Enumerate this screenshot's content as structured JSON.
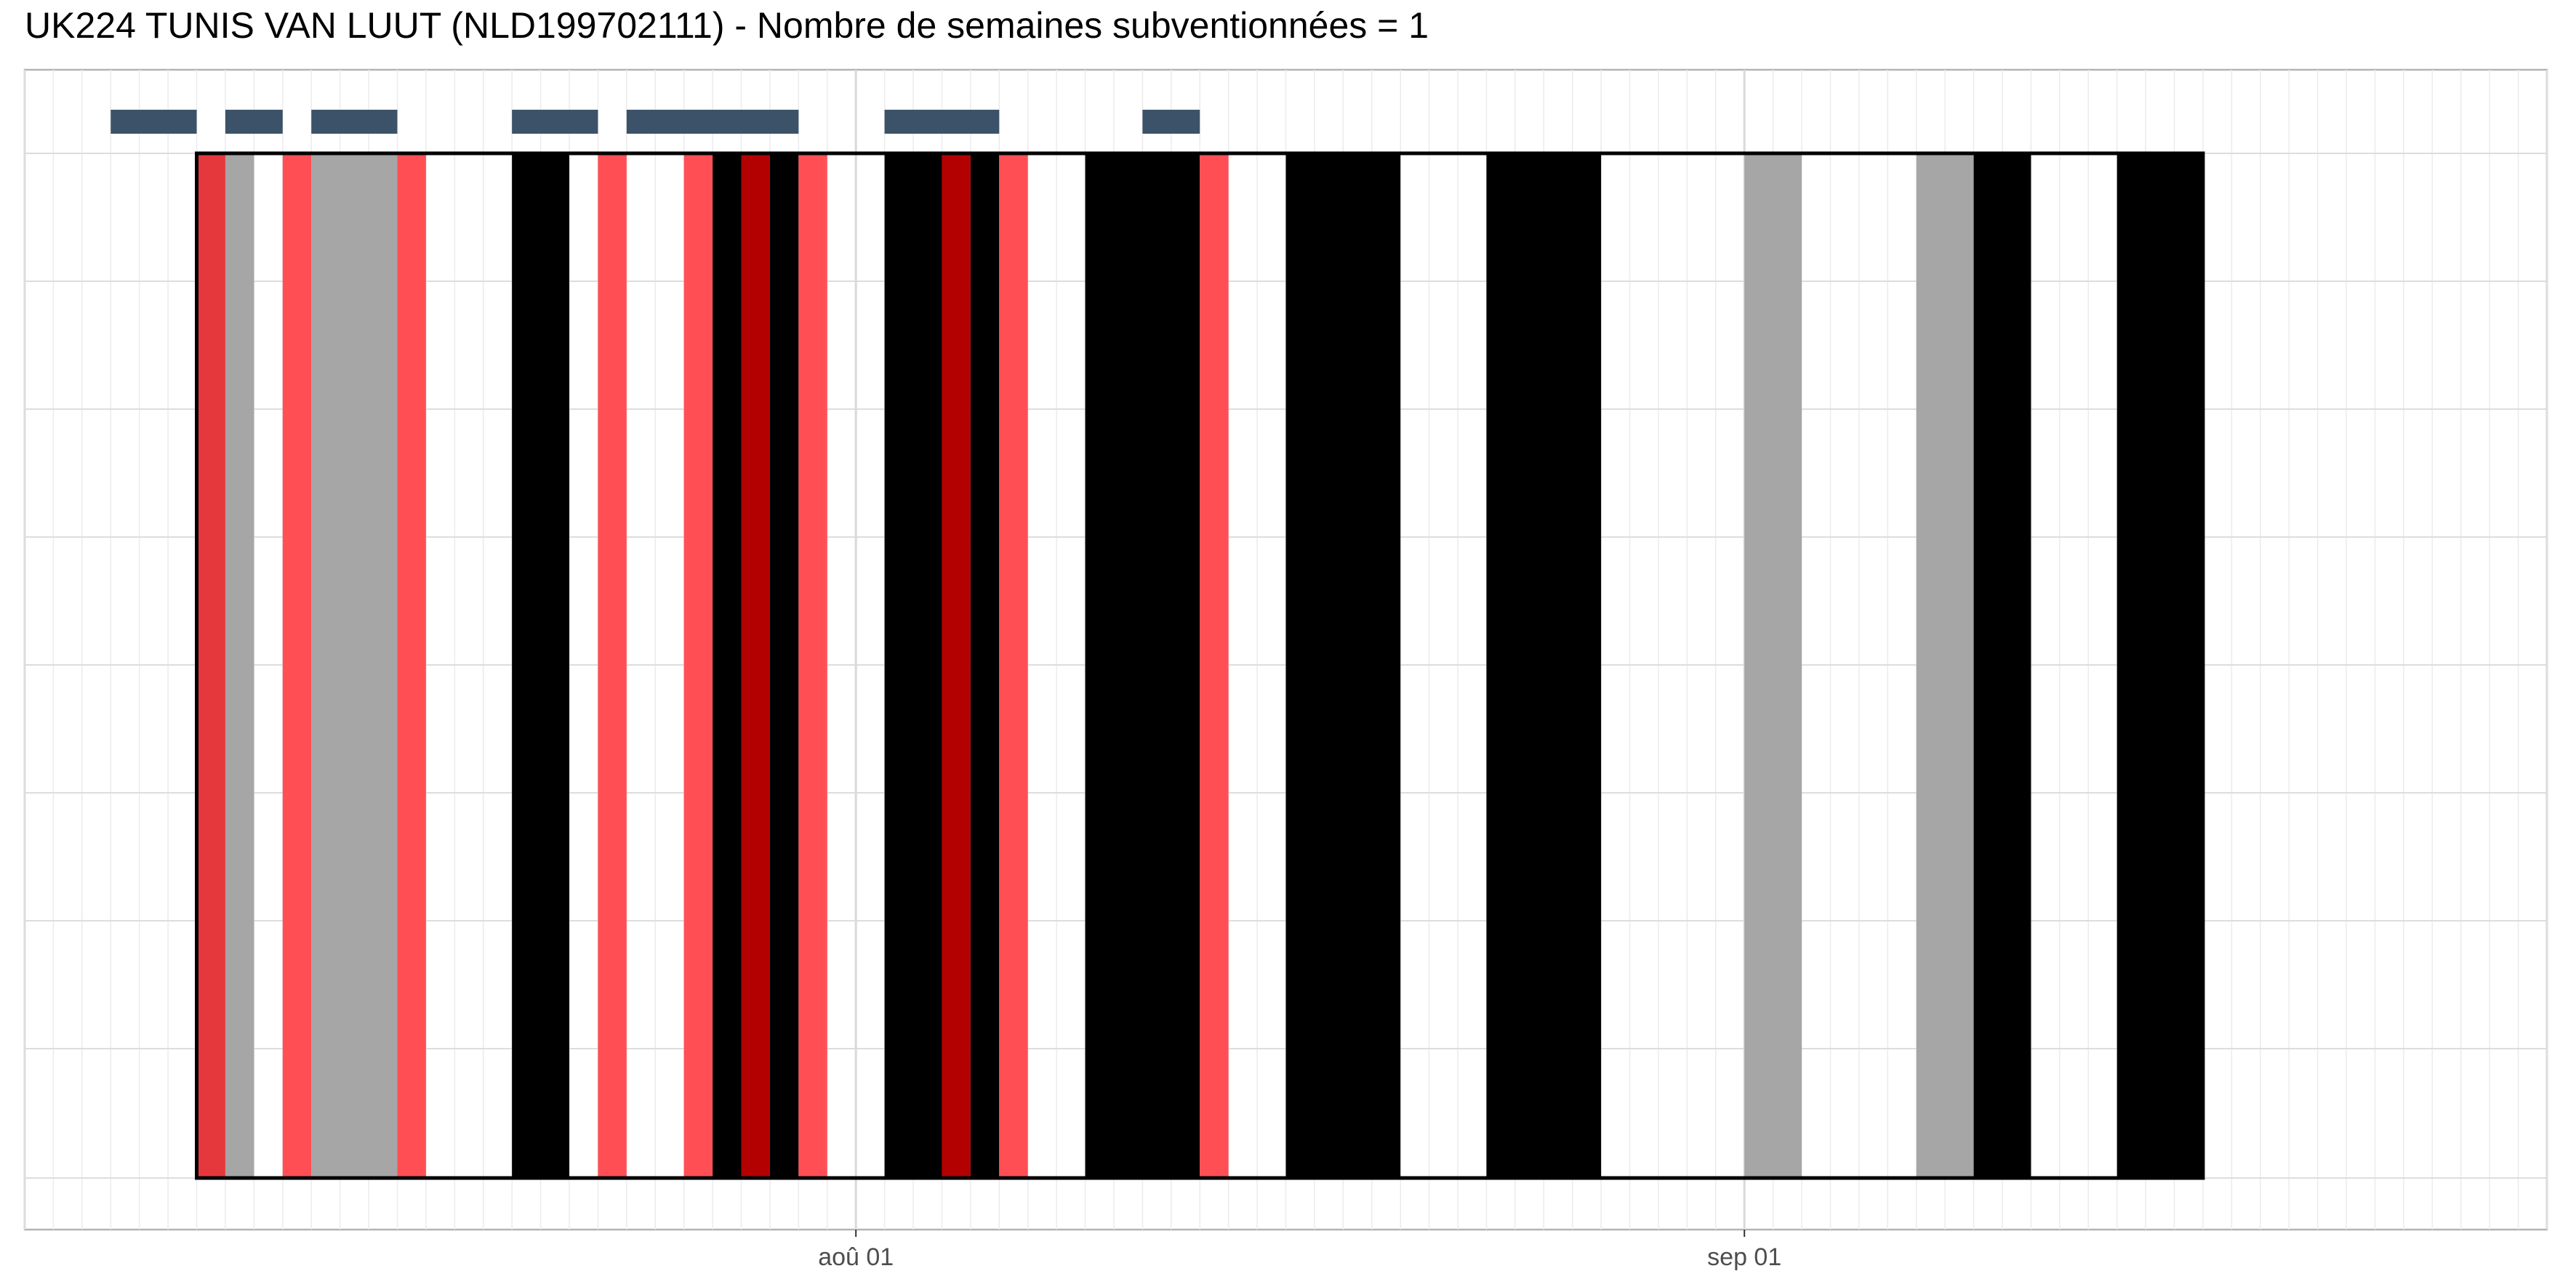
{
  "chart_data": {
    "type": "timeline",
    "title": "UK224 TUNIS VAN LUUT (NLD199702111) - Nombre de semaines subventionnées = 1",
    "x_unit": "day",
    "xlim": [
      "2018-07-03",
      "2018-09-29"
    ],
    "x_ticks": [
      {
        "date": "2018-08-01",
        "label": "aoû 01"
      },
      {
        "date": "2018-09-01",
        "label": "sep 01"
      }
    ],
    "xlabel": "",
    "ylabel": "",
    "grid": true,
    "colors": {
      "black": "#000000",
      "gray": "#a6a6a6",
      "red": "#ff4f55",
      "darkred": "#b30000",
      "mixedred": "#e5383d",
      "white": "#ffffff",
      "topbar": "#3b5269",
      "frame": "#000000"
    },
    "main_frame": {
      "start": "2018-07-09",
      "end": "2018-09-17"
    },
    "day_segments": [
      {
        "start": "2018-07-09",
        "end": "2018-07-10",
        "category": "mixedred"
      },
      {
        "start": "2018-07-10",
        "end": "2018-07-11",
        "category": "gray"
      },
      {
        "start": "2018-07-12",
        "end": "2018-07-13",
        "category": "red"
      },
      {
        "start": "2018-07-13",
        "end": "2018-07-16",
        "category": "gray"
      },
      {
        "start": "2018-07-16",
        "end": "2018-07-17",
        "category": "red"
      },
      {
        "start": "2018-07-20",
        "end": "2018-07-22",
        "category": "black"
      },
      {
        "start": "2018-07-23",
        "end": "2018-07-24",
        "category": "red"
      },
      {
        "start": "2018-07-26",
        "end": "2018-07-27",
        "category": "red"
      },
      {
        "start": "2018-07-27",
        "end": "2018-07-28",
        "category": "black"
      },
      {
        "start": "2018-07-28",
        "end": "2018-07-29",
        "category": "darkred"
      },
      {
        "start": "2018-07-29",
        "end": "2018-07-30",
        "category": "black"
      },
      {
        "start": "2018-07-30",
        "end": "2018-07-31",
        "category": "red"
      },
      {
        "start": "2018-08-02",
        "end": "2018-08-04",
        "category": "black"
      },
      {
        "start": "2018-08-04",
        "end": "2018-08-05",
        "category": "darkred"
      },
      {
        "start": "2018-08-05",
        "end": "2018-08-06",
        "category": "black"
      },
      {
        "start": "2018-08-06",
        "end": "2018-08-07",
        "category": "red"
      },
      {
        "start": "2018-08-09",
        "end": "2018-08-13",
        "category": "black"
      },
      {
        "start": "2018-08-13",
        "end": "2018-08-14",
        "category": "red"
      },
      {
        "start": "2018-08-16",
        "end": "2018-08-20",
        "category": "black"
      },
      {
        "start": "2018-08-23",
        "end": "2018-08-27",
        "category": "black"
      },
      {
        "start": "2018-09-01",
        "end": "2018-09-03",
        "category": "gray"
      },
      {
        "start": "2018-09-07",
        "end": "2018-09-09",
        "category": "gray"
      },
      {
        "start": "2018-09-09",
        "end": "2018-09-11",
        "category": "black"
      },
      {
        "start": "2018-09-14",
        "end": "2018-09-17",
        "category": "black"
      }
    ],
    "top_bars": [
      {
        "start": "2018-07-06",
        "end": "2018-07-09"
      },
      {
        "start": "2018-07-10",
        "end": "2018-07-12"
      },
      {
        "start": "2018-07-13",
        "end": "2018-07-16"
      },
      {
        "start": "2018-07-20",
        "end": "2018-07-23"
      },
      {
        "start": "2018-07-24",
        "end": "2018-07-30"
      },
      {
        "start": "2018-08-02",
        "end": "2018-08-06"
      },
      {
        "start": "2018-08-11",
        "end": "2018-08-13"
      }
    ]
  }
}
